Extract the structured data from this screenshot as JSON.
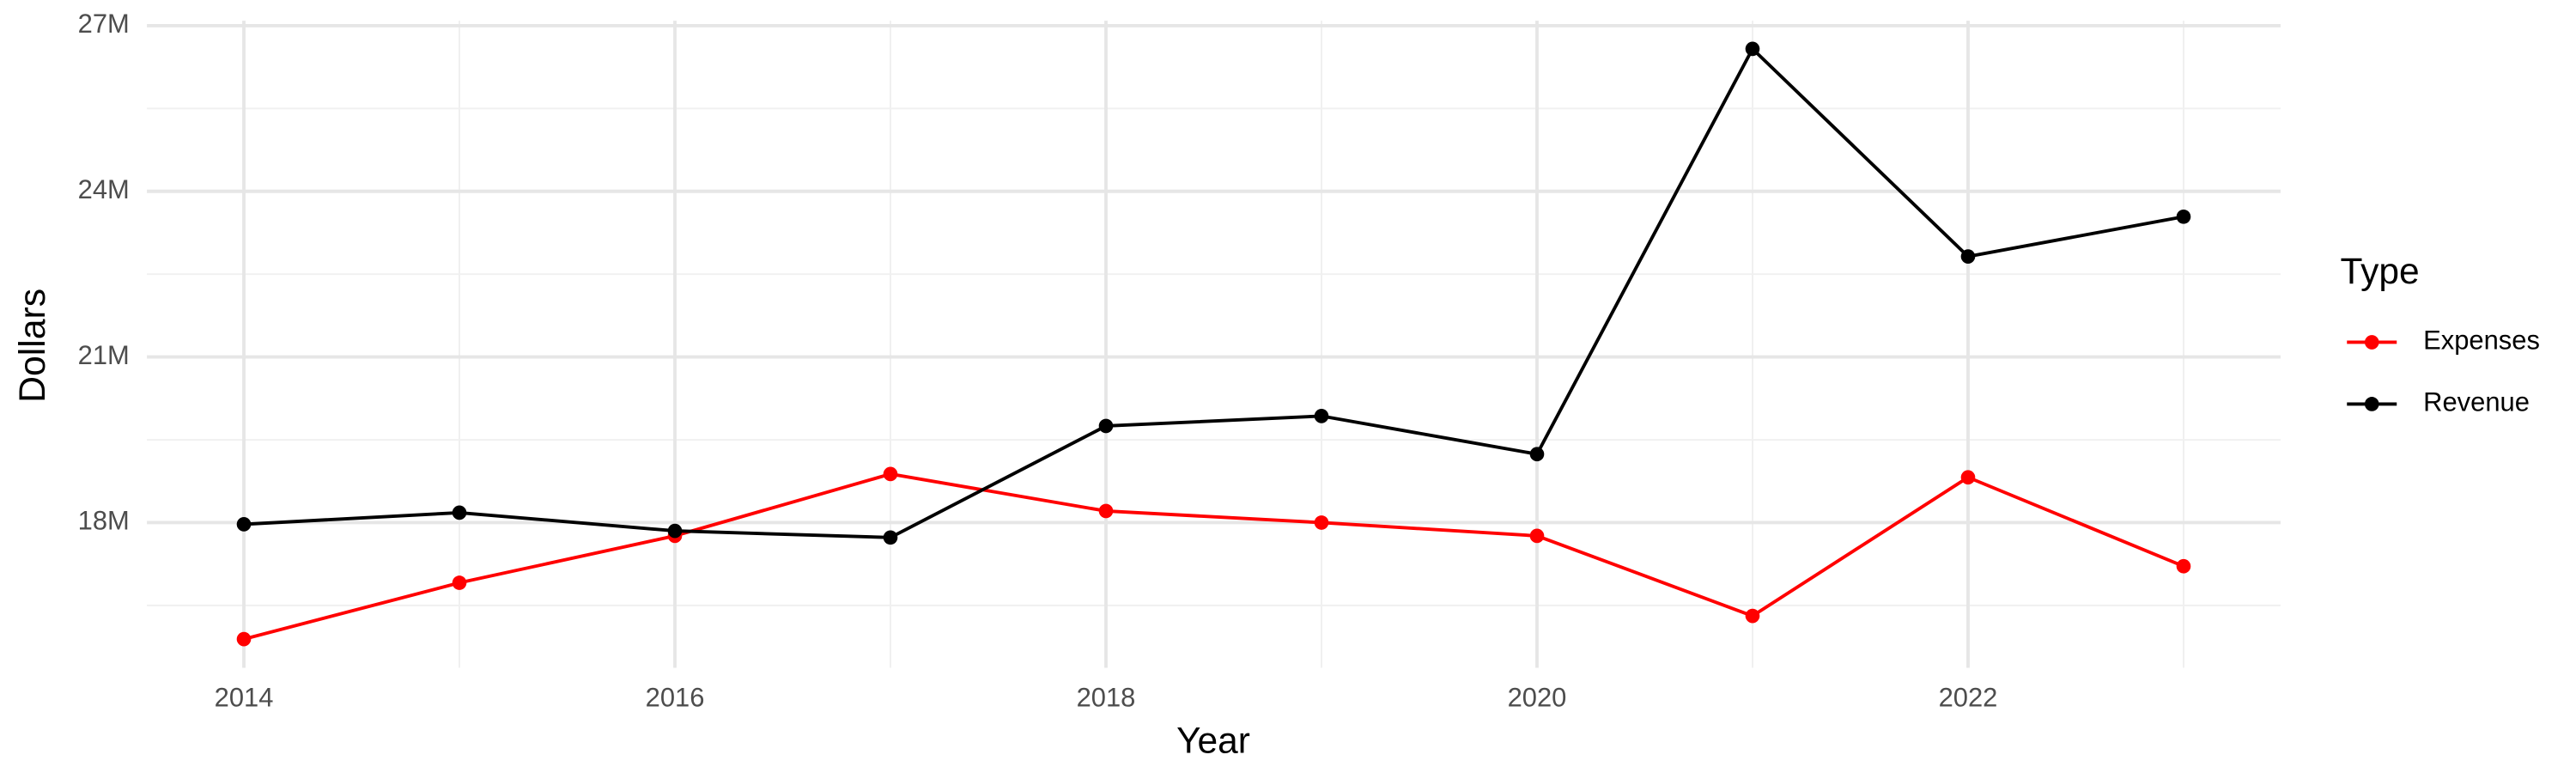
{
  "chart_data": {
    "type": "line",
    "x_label": "Year",
    "y_label": "Dollars",
    "x": [
      2014,
      2015,
      2016,
      2017,
      2018,
      2019,
      2020,
      2021,
      2022,
      2023
    ],
    "series": [
      {
        "name": "Expenses",
        "color": "#ff0000",
        "values": [
          15890000,
          16910000,
          17760000,
          18880000,
          18210000,
          18000000,
          17760000,
          16310000,
          18820000,
          17210000
        ]
      },
      {
        "name": "Revenue",
        "color": "#000000",
        "values": [
          17970000,
          18180000,
          17850000,
          17730000,
          19750000,
          19930000,
          19240000,
          26580000,
          22820000,
          23540000
        ]
      }
    ],
    "legend_title": "Type",
    "legend": "right",
    "xlim": [
      2013.55,
      2023.45
    ],
    "xticks": [
      2014,
      2016,
      2018,
      2020,
      2022
    ],
    "ylim": [
      15370000,
      27090000
    ],
    "yticks": [
      {
        "value": 18000000,
        "label": "18M"
      },
      {
        "value": 21000000,
        "label": "21M"
      },
      {
        "value": 24000000,
        "label": "24M"
      },
      {
        "value": 27000000,
        "label": "27M"
      }
    ],
    "grid": true
  }
}
